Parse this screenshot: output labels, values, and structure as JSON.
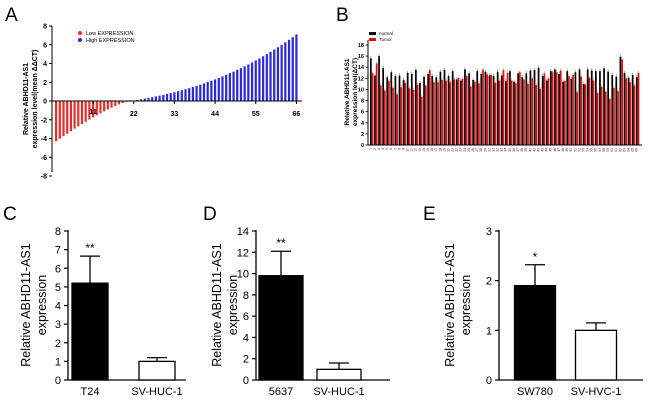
{
  "chart_data": [
    {
      "panel": "A",
      "type": "bar",
      "title": "",
      "ylabel_line1": "Relative ABHD11-AS1",
      "ylabel_line2": "expression level(mean ΔΔCT)",
      "ylim": [
        -8,
        8
      ],
      "y_ticks": [
        -8,
        -6,
        -4,
        -2,
        0,
        2,
        4,
        6,
        8
      ],
      "x_ticks": [
        "11",
        "22",
        "33",
        "44",
        "55",
        "66"
      ],
      "legend": [
        {
          "label": "Low EXPRESSION",
          "color": "#e63030"
        },
        {
          "label": "High EXPRESSION",
          "color": "#2a2ad8"
        }
      ],
      "n_samples": 66,
      "n_low": 21,
      "low_min": -4.3,
      "high_max": 7.1
    },
    {
      "panel": "B",
      "type": "bar",
      "ylabel_line1": "Relative ABHD11-AS1",
      "ylabel_line2": "expression level(ΔCT)",
      "ylim": [
        0,
        18
      ],
      "y_ticks": [
        0,
        2,
        4,
        6,
        8,
        10,
        12,
        14,
        16,
        18
      ],
      "legend": [
        {
          "label": "normal",
          "color": "#000000"
        },
        {
          "label": "Tumor",
          "color": "#e01010"
        }
      ],
      "pairs": 66,
      "normal": [
        15.6,
        12.5,
        16.0,
        13.9,
        12.2,
        13.1,
        12.4,
        12.5,
        11.7,
        13.0,
        12.8,
        13.5,
        11.2,
        12.3,
        12.8,
        12.4,
        12.2,
        13.2,
        13.5,
        12.4,
        13.3,
        11.8,
        11.6,
        13.6,
        12.9,
        11.7,
        13.3,
        12.8,
        13.2,
        12.5,
        12.4,
        13.2,
        12.5,
        11.5,
        13.3,
        11.4,
        12.9,
        12.2,
        12.9,
        13.4,
        13.5,
        13.9,
        12.4,
        11.6,
        13.3,
        13.6,
        12.8,
        11.4,
        13.3,
        11.9,
        13.1,
        13.6,
        11.0,
        13.6,
        13.4,
        13.3,
        13.3,
        13.8,
        13.2,
        12.6,
        12.3,
        15.9,
        13.0,
        12.1,
        12.6,
        12.2
      ],
      "tumor": [
        12.9,
        14.7,
        10.7,
        9.8,
        11.5,
        10.3,
        9.1,
        10.4,
        11.2,
        10.2,
        9.9,
        10.8,
        8.7,
        10.7,
        13.5,
        11.3,
        11.3,
        11.7,
        11.6,
        11.3,
        11.8,
        12.1,
        11.9,
        12.4,
        10.5,
        11.4,
        11.1,
        13.6,
        12.7,
        12.6,
        11.2,
        11.6,
        13.5,
        13.0,
        11.6,
        11.1,
        13.1,
        11.8,
        11.0,
        12.0,
        10.8,
        10.1,
        12.9,
        12.0,
        13.1,
        13.1,
        13.4,
        11.5,
        12.4,
        12.6,
        9.5,
        12.3,
        10.9,
        12.1,
        11.6,
        9.4,
        10.5,
        9.6,
        8.3,
        10.3,
        9.7,
        15.4,
        12.0,
        11.3,
        10.7,
        13.0
      ]
    },
    {
      "panel": "C",
      "type": "bar",
      "ylabel_line1": "Relative ABHD11-AS1",
      "ylabel_line2": "expression",
      "categories": [
        "T24",
        "SV-HUC-1"
      ],
      "values": [
        5.2,
        1.0
      ],
      "errors": [
        1.45,
        0.2
      ],
      "ylim": [
        0,
        8
      ],
      "y_ticks": [
        0,
        1,
        2,
        3,
        4,
        5,
        6,
        7,
        8
      ],
      "annotation": "**",
      "fills": [
        "#000000",
        "#ffffff"
      ]
    },
    {
      "panel": "D",
      "type": "bar",
      "ylabel_line1": "Relative ABHD11-AS1",
      "ylabel_line2": "expression",
      "categories": [
        "5637",
        "SV-HUC-1"
      ],
      "values": [
        9.8,
        1.0
      ],
      "errors": [
        2.3,
        0.6
      ],
      "ylim": [
        0,
        14
      ],
      "y_ticks": [
        0,
        2,
        4,
        6,
        8,
        10,
        12,
        14
      ],
      "annotation": "**",
      "fills": [
        "#000000",
        "#ffffff"
      ]
    },
    {
      "panel": "E",
      "type": "bar",
      "ylabel_line1": "Relative ABHD11-AS1",
      "ylabel_line2": "expression",
      "categories": [
        "SW780",
        "SV-HVC-1"
      ],
      "values": [
        1.9,
        1.0
      ],
      "errors": [
        0.42,
        0.15
      ],
      "ylim": [
        0,
        3
      ],
      "y_ticks": [
        0,
        1,
        2,
        3
      ],
      "annotation": "*",
      "fills": [
        "#000000",
        "#ffffff"
      ]
    }
  ]
}
